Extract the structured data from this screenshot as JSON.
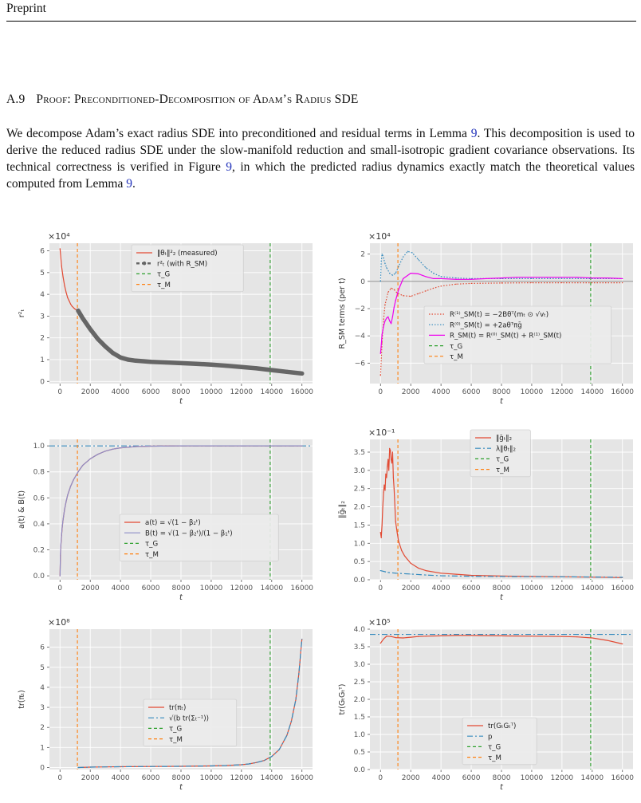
{
  "header": {
    "running_title": "Preprint"
  },
  "section": {
    "number": "A.9",
    "title": "Proof: Preconditioned-Decomposition of Adam’s Radius SDE"
  },
  "paragraph": {
    "parts": [
      "We decompose Adam’s exact radius SDE into preconditioned and residual terms in Lemma ",
      "9",
      ". This decomposition is used to derive the reduced radius SDE under the slow-manifold reduction and small-isotropic gradient covariance observations. Its technical correctness is verified in Figure ",
      "9",
      ", in which the predicted radius dynamics exactly match the theoretical values computed from Lemma ",
      "9",
      "."
    ]
  },
  "colors": {
    "red": "#e24a33",
    "blue": "#348abd",
    "green": "#2ca02c",
    "orange": "#ff7f0e",
    "gray": "#666666",
    "magenta": "#ee00ee",
    "purple": "#8e8ec8",
    "panel_bg": "#e5e5e5"
  },
  "chart_data": [
    {
      "type": "line",
      "multiplier": "×10⁴",
      "xlabel": "t",
      "ylabel": "r²ₜ",
      "xlim": [
        -700,
        16700
      ],
      "ylim": [
        -0.1,
        6.35
      ],
      "xticks": [
        0,
        2000,
        4000,
        6000,
        8000,
        10000,
        12000,
        14000,
        16000
      ],
      "yticks": [
        0,
        1,
        2,
        3,
        4,
        5,
        6
      ],
      "ytick_labels": [
        "0",
        "1",
        "2",
        "3",
        "4",
        "5",
        "6"
      ],
      "grid": true,
      "legend_position": "top-center",
      "series": [
        {
          "name": "‖θₜ‖²₂ (measured)",
          "color": "#e24a33",
          "style": "solid",
          "x": [
            0,
            100,
            200,
            300,
            400,
            500,
            600,
            700,
            800,
            900,
            1000,
            1200
          ],
          "y": [
            6.1,
            5.3,
            4.8,
            4.4,
            4.1,
            3.85,
            3.7,
            3.55,
            3.45,
            3.38,
            3.32,
            3.25
          ]
        },
        {
          "name": "r²ₜ (with R_SM)",
          "color": "#666666",
          "style": "thick-dots",
          "x": [
            1200,
            1500,
            2000,
            2500,
            3000,
            3500,
            4000,
            4500,
            5000,
            6000,
            7000,
            8000,
            9000,
            10000,
            11000,
            12000,
            13000,
            14000,
            15000,
            16000
          ],
          "y": [
            3.25,
            2.9,
            2.4,
            1.95,
            1.6,
            1.3,
            1.1,
            1.0,
            0.95,
            0.9,
            0.87,
            0.84,
            0.81,
            0.77,
            0.72,
            0.66,
            0.6,
            0.52,
            0.44,
            0.36
          ]
        }
      ],
      "vlines": [
        {
          "name": "τ_G",
          "x": 13900,
          "color": "#2ca02c"
        },
        {
          "name": "τ_M",
          "x": 1150,
          "color": "#ff7f0e"
        }
      ]
    },
    {
      "type": "line",
      "multiplier": "×10⁴",
      "xlabel": "t",
      "ylabel": "R_SM terms (per t)",
      "xlim": [
        -700,
        16700
      ],
      "ylim": [
        -7.5,
        2.8
      ],
      "xticks": [
        0,
        2000,
        4000,
        6000,
        8000,
        10000,
        12000,
        14000,
        16000
      ],
      "yticks": [
        -6,
        -4,
        -2,
        0,
        2
      ],
      "ytick_labels": [
        "−6",
        "−4",
        "−2",
        "0",
        "2"
      ],
      "grid": true,
      "legend_position": "bottom-right",
      "hline": {
        "y": 0,
        "color": "#999999"
      },
      "series": [
        {
          "name": "R⁽¹⁾_SM(t) = −2Bθᵀ(mₜ ⊙ √vₜ)",
          "color": "#e24a33",
          "style": "dotted",
          "x": [
            0,
            100,
            200,
            300,
            500,
            700,
            900,
            1100,
            1500,
            2000,
            2500,
            3000,
            3500,
            4000,
            5000,
            6000,
            8000,
            10000,
            12000,
            14000,
            16000
          ],
          "y": [
            -6.9,
            -4.5,
            -2.8,
            -1.7,
            -0.8,
            -0.5,
            -0.6,
            -0.85,
            -1.05,
            -1.1,
            -0.9,
            -0.7,
            -0.5,
            -0.35,
            -0.2,
            -0.15,
            -0.12,
            -0.1,
            -0.1,
            -0.1,
            -0.1
          ]
        },
        {
          "name": "R⁽⁰⁾_SM(t) = +2aθᵀπḡ",
          "color": "#348abd",
          "style": "dotted",
          "x": [
            0,
            50,
            100,
            150,
            200,
            300,
            400,
            600,
            800,
            1000,
            1200,
            1500,
            1800,
            2100,
            2500,
            3000,
            3500,
            4000,
            5000,
            6000,
            8000,
            10000,
            12000,
            14000,
            16000
          ],
          "y": [
            0,
            1.5,
            2.0,
            1.9,
            1.7,
            1.3,
            1.0,
            0.6,
            0.45,
            0.6,
            1.1,
            1.8,
            2.2,
            2.1,
            1.6,
            1.0,
            0.6,
            0.35,
            0.25,
            0.2,
            0.2,
            0.2,
            0.2,
            0.2,
            0.2
          ]
        },
        {
          "name": "R_SM(t) = R⁽⁰⁾_SM(t) + R⁽¹⁾_SM(t)",
          "color": "#ee00ee",
          "style": "solid",
          "x": [
            0,
            100,
            200,
            300,
            400,
            500,
            600,
            700,
            800,
            900,
            1000,
            1200,
            1500,
            2000,
            2500,
            3000,
            3500,
            4000,
            5000,
            6000,
            7000,
            8000,
            9000,
            10000,
            11000,
            12000,
            13000,
            14000,
            15000,
            16000
          ],
          "y": [
            -5.3,
            -3.9,
            -3.3,
            -2.9,
            -2.7,
            -2.6,
            -2.9,
            -3.1,
            -2.6,
            -1.9,
            -1.4,
            -0.6,
            0.2,
            0.6,
            0.55,
            0.35,
            0.2,
            0.2,
            0.15,
            0.15,
            0.2,
            0.25,
            0.3,
            0.3,
            0.3,
            0.3,
            0.3,
            0.25,
            0.25,
            0.2
          ]
        }
      ],
      "vlines": [
        {
          "name": "τ_G",
          "x": 13900,
          "color": "#2ca02c"
        },
        {
          "name": "τ_M",
          "x": 1150,
          "color": "#ff7f0e"
        }
      ]
    },
    {
      "type": "line",
      "multiplier": "",
      "xlabel": "t",
      "ylabel": "a(t) & B(t)",
      "xlim": [
        -700,
        16700
      ],
      "ylim": [
        -0.03,
        1.05
      ],
      "xticks": [
        0,
        2000,
        4000,
        6000,
        8000,
        10000,
        12000,
        14000,
        16000
      ],
      "yticks": [
        0.0,
        0.2,
        0.4,
        0.6,
        0.8,
        1.0
      ],
      "ytick_labels": [
        "0.0",
        "0.2",
        "0.4",
        "0.6",
        "0.8",
        "1.0"
      ],
      "grid": true,
      "legend_position": "lower-center",
      "hline": {
        "y": 1.0,
        "color": "#348abd",
        "style": "dashdot"
      },
      "series": [
        {
          "name": "a(t) = √(1 − β₂ᵗ)",
          "color": "#e24a33",
          "style": "solid",
          "x": [
            0,
            25,
            50,
            100,
            150,
            200,
            300,
            400,
            500,
            700,
            900,
            1200,
            1500,
            2000,
            2500,
            3000,
            3500,
            4000,
            5000,
            6000,
            8000,
            10000,
            12000,
            14000,
            16000
          ],
          "y": [
            0,
            0.156,
            0.221,
            0.31,
            0.376,
            0.43,
            0.51,
            0.57,
            0.62,
            0.69,
            0.74,
            0.8,
            0.85,
            0.9,
            0.935,
            0.96,
            0.975,
            0.985,
            0.995,
            0.998,
            1.0,
            1.0,
            1.0,
            1.0,
            1.0
          ]
        },
        {
          "name": "B(t) = √(1 − β₂ᵗ)/(1 − β₁ᵗ)",
          "color": "#8e8ec8",
          "style": "solid",
          "x": [
            0,
            25,
            50,
            100,
            150,
            200,
            300,
            400,
            500,
            700,
            900,
            1200,
            1500,
            2000,
            2500,
            3000,
            3500,
            4000,
            5000,
            6000,
            8000,
            10000,
            12000,
            14000,
            16000
          ],
          "y": [
            0,
            0.17,
            0.23,
            0.315,
            0.38,
            0.432,
            0.512,
            0.571,
            0.621,
            0.69,
            0.74,
            0.8,
            0.85,
            0.9,
            0.935,
            0.96,
            0.975,
            0.985,
            0.995,
            0.998,
            1.0,
            1.0,
            1.0,
            1.0,
            1.0
          ]
        }
      ],
      "vlines": [
        {
          "name": "τ_G",
          "x": 13900,
          "color": "#2ca02c"
        },
        {
          "name": "τ_M",
          "x": 1150,
          "color": "#ff7f0e"
        }
      ]
    },
    {
      "type": "line",
      "multiplier": "×10⁻¹",
      "xlabel": "t",
      "ylabel": "‖ḡₜ‖₂",
      "xlim": [
        -700,
        16700
      ],
      "ylim": [
        0,
        3.85
      ],
      "xticks": [
        0,
        2000,
        4000,
        6000,
        8000,
        10000,
        12000,
        14000,
        16000
      ],
      "yticks": [
        0.0,
        0.5,
        1.0,
        1.5,
        2.0,
        2.5,
        3.0,
        3.5
      ],
      "ytick_labels": [
        "0.0",
        "0.5",
        "1.0",
        "1.5",
        "2.0",
        "2.5",
        "3.0",
        "3.5"
      ],
      "grid": true,
      "legend_position": "top-right",
      "series": [
        {
          "name": "‖ḡₜ‖₂",
          "color": "#e24a33",
          "style": "solid",
          "x": [
            0,
            50,
            100,
            150,
            200,
            250,
            300,
            350,
            400,
            450,
            500,
            550,
            600,
            650,
            700,
            750,
            800,
            850,
            900,
            1000,
            1100,
            1200,
            1400,
            1600,
            1800,
            2000,
            2500,
            3000,
            4000,
            5000,
            6000,
            8000,
            10000,
            12000,
            14000,
            16000
          ],
          "y": [
            1.3,
            1.15,
            1.5,
            2.0,
            2.4,
            2.6,
            2.45,
            2.9,
            2.8,
            3.1,
            3.3,
            3.0,
            3.6,
            3.55,
            3.3,
            3.2,
            3.5,
            2.8,
            2.5,
            1.6,
            1.3,
            1.05,
            0.8,
            0.65,
            0.55,
            0.45,
            0.32,
            0.25,
            0.18,
            0.15,
            0.12,
            0.1,
            0.09,
            0.08,
            0.07,
            0.06
          ]
        },
        {
          "name": "λ‖θₜ‖₂",
          "color": "#348abd",
          "style": "dashdot",
          "x": [
            0,
            500,
            1000,
            2000,
            3000,
            4000,
            6000,
            8000,
            10000,
            12000,
            14000,
            16000
          ],
          "y": [
            0.25,
            0.2,
            0.18,
            0.155,
            0.13,
            0.11,
            0.095,
            0.09,
            0.085,
            0.08,
            0.075,
            0.065
          ]
        }
      ],
      "vlines": [
        {
          "name": "τ_G",
          "x": 13900,
          "color": "#2ca02c"
        },
        {
          "name": "τ_M",
          "x": 1150,
          "color": "#ff7f0e"
        }
      ]
    },
    {
      "type": "line",
      "multiplier": "×10⁸",
      "xlabel": "t",
      "ylabel": "tr(πₜ)",
      "xlim": [
        -700,
        16700
      ],
      "ylim": [
        -0.1,
        6.9
      ],
      "xticks": [
        0,
        2000,
        4000,
        6000,
        8000,
        10000,
        12000,
        14000,
        16000
      ],
      "yticks": [
        0,
        1,
        2,
        3,
        4,
        5,
        6
      ],
      "ytick_labels": [
        "0",
        "1",
        "2",
        "3",
        "4",
        "5",
        "6"
      ],
      "grid": true,
      "legend_position": "bottom-center",
      "series": [
        {
          "name": "tr(πₜ)",
          "color": "#e24a33",
          "style": "solid",
          "x": [
            1200,
            2000,
            4000,
            6000,
            8000,
            10000,
            11000,
            12000,
            12500,
            13000,
            13500,
            14000,
            14500,
            15000,
            15300,
            15600,
            15800,
            16000
          ],
          "y": [
            0.0,
            0.02,
            0.04,
            0.05,
            0.06,
            0.08,
            0.1,
            0.14,
            0.18,
            0.25,
            0.35,
            0.55,
            0.9,
            1.6,
            2.3,
            3.4,
            4.7,
            6.4
          ]
        },
        {
          "name": "√(b tr(Σₜ⁻¹))",
          "color": "#348abd",
          "style": "dashdot",
          "x": [
            1200,
            2000,
            4000,
            6000,
            8000,
            10000,
            11000,
            12000,
            12500,
            13000,
            13500,
            14000,
            14500,
            15000,
            15300,
            15600,
            15800,
            16000
          ],
          "y": [
            0.0,
            0.02,
            0.04,
            0.05,
            0.06,
            0.08,
            0.1,
            0.14,
            0.18,
            0.25,
            0.35,
            0.55,
            0.9,
            1.6,
            2.3,
            3.4,
            4.7,
            6.4
          ]
        }
      ],
      "vlines": [
        {
          "name": "τ_G",
          "x": 13900,
          "color": "#2ca02c"
        },
        {
          "name": "τ_M",
          "x": 1150,
          "color": "#ff7f0e"
        }
      ]
    },
    {
      "type": "line",
      "multiplier": "×10⁵",
      "xlabel": "t",
      "ylabel": "tr(GₜGₜᵀ)",
      "xlim": [
        -700,
        16700
      ],
      "ylim": [
        0,
        4.0
      ],
      "xticks": [
        0,
        2000,
        4000,
        6000,
        8000,
        10000,
        12000,
        14000,
        16000
      ],
      "yticks": [
        0.0,
        0.5,
        1.0,
        1.5,
        2.0,
        2.5,
        3.0,
        3.5,
        4.0
      ],
      "ytick_labels": [
        "0.0",
        "0.5",
        "1.0",
        "1.5",
        "2.0",
        "2.5",
        "3.0",
        "3.5",
        "4.0"
      ],
      "grid": true,
      "legend_position": "bottom-right",
      "hline": {
        "y": 3.85,
        "color": "#348abd",
        "style": "dashdot"
      },
      "series": [
        {
          "name": "tr(GₜGₜᵀ)",
          "color": "#e24a33",
          "style": "solid",
          "x": [
            0,
            200,
            400,
            700,
            1000,
            1500,
            2000,
            2500,
            3000,
            4000,
            5000,
            6000,
            8000,
            10000,
            12000,
            13000,
            14000,
            15000,
            16000
          ],
          "y": [
            3.6,
            3.72,
            3.8,
            3.79,
            3.76,
            3.75,
            3.77,
            3.79,
            3.8,
            3.81,
            3.82,
            3.82,
            3.81,
            3.8,
            3.79,
            3.78,
            3.75,
            3.68,
            3.58
          ]
        },
        {
          "name": "p",
          "color": "#348abd",
          "style": "dashdot",
          "x": [],
          "y": []
        }
      ],
      "vlines": [
        {
          "name": "τ_G",
          "x": 13900,
          "color": "#2ca02c"
        },
        {
          "name": "τ_M",
          "x": 1150,
          "color": "#ff7f0e"
        }
      ]
    }
  ]
}
